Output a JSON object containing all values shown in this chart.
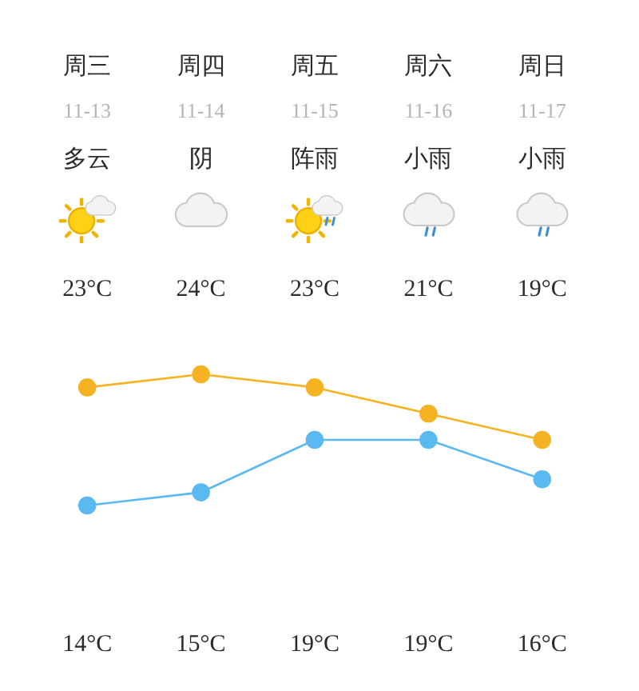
{
  "chart_data": {
    "type": "line",
    "categories": [
      "周三\n11-13\n多云",
      "周四\n11-14\n阴",
      "周五\n11-15\n阵雨",
      "周六\n11-16\n小雨",
      "周日\n11-17\n小雨"
    ],
    "series": [
      {
        "color": "#f5b324",
        "values": [
          23,
          24,
          23,
          21,
          19
        ],
        "value_labels": [
          "23°C",
          "24°C",
          "23°C",
          "21°C",
          "19°C"
        ]
      },
      {
        "color": "#5bb9f2",
        "values": [
          14,
          15,
          19,
          19,
          16
        ],
        "value_labels": [
          "14°C",
          "15°C",
          "19°C",
          "19°C",
          "16°C"
        ]
      }
    ],
    "marker": "circle",
    "line_style": "solid"
  }
}
